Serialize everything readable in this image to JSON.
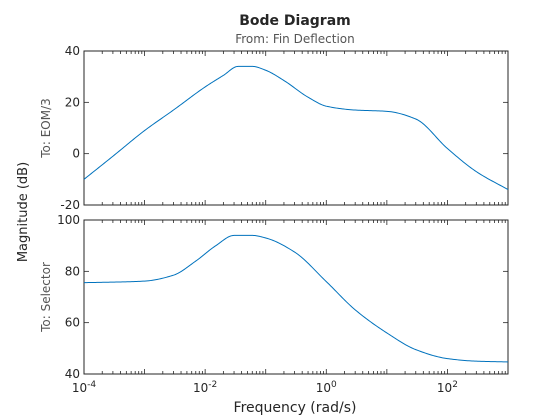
{
  "chart_data": {
    "type": "line",
    "title": "Bode Diagram",
    "subtitle": "From: Fin Deflection",
    "ylabel": "Magnitude (dB)",
    "xlabel": "Frequency  (rad/s)",
    "xscale": "log",
    "xlim": [
      0.0001,
      1000
    ],
    "x_ticks": [
      {
        "base": "10",
        "exp": "-4"
      },
      {
        "base": "10",
        "exp": "-2"
      },
      {
        "base": "10",
        "exp": "0"
      },
      {
        "base": "10",
        "exp": "2"
      }
    ],
    "x_tick_values": [
      0.0001,
      0.01,
      1,
      100
    ],
    "line_color": "#0072BD",
    "grid": false,
    "panels": [
      {
        "row_label": "To: EOM/3",
        "ylim": [
          -20,
          40
        ],
        "y_ticks": [
          "40",
          "20",
          "0",
          "-20"
        ],
        "y_tick_values": [
          40,
          20,
          0,
          -20
        ],
        "x": [
          0.0001,
          0.0003,
          0.001,
          0.003,
          0.01,
          0.02,
          0.035,
          0.06,
          0.1,
          0.2,
          0.5,
          1,
          3,
          10,
          30,
          100,
          300,
          1000
        ],
        "y": [
          -10,
          -1,
          9,
          17,
          26,
          30.5,
          34,
          34,
          32.5,
          28.5,
          22,
          18.5,
          17,
          16.5,
          13.5,
          2,
          -7,
          -14
        ]
      },
      {
        "row_label": "To: Selector",
        "ylim": [
          40,
          100
        ],
        "y_ticks": [
          "100",
          "80",
          "60",
          "40"
        ],
        "y_tick_values": [
          100,
          80,
          60,
          40
        ],
        "x": [
          0.0001,
          0.0003,
          0.001,
          0.003,
          0.007,
          0.015,
          0.03,
          0.06,
          0.1,
          0.3,
          1,
          3,
          10,
          30,
          100,
          300,
          1000
        ],
        "y": [
          75.6,
          75.8,
          76.2,
          78.5,
          84,
          90,
          94,
          94,
          93,
          87.5,
          76,
          65,
          56,
          49.5,
          46,
          45,
          44.7
        ]
      }
    ]
  }
}
